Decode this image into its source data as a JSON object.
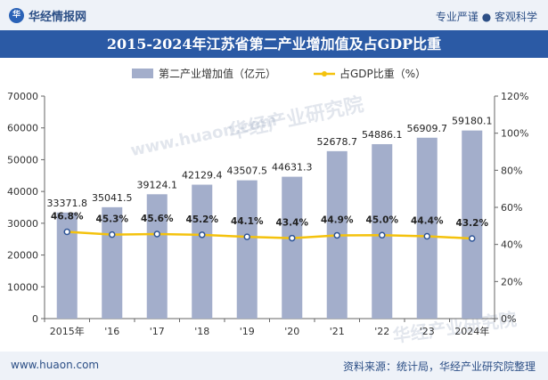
{
  "header": {
    "brand": "华经情报网",
    "logo_text": "华",
    "tagline": "专业严谨 ● 客观科学"
  },
  "title": "2015-2024年江苏省第二产业增加值及占GDP比重",
  "footer": {
    "website": "www.huaon.com",
    "source": "资料来源：统计局，华经产业研究院整理"
  },
  "watermarks": [
    "华经产业研究院",
    "www.huaon.com",
    "华经产业研究院"
  ],
  "colors": {
    "bar": "#a3aecb",
    "line": "#f4c20d",
    "title_bg": "#2b5aa5",
    "brand": "#2c4f86"
  },
  "chart_data": {
    "type": "bar",
    "categories": [
      "2015年",
      "'16",
      "'17",
      "'18",
      "'19",
      "'20",
      "'21",
      "'22",
      "'23",
      "2024年"
    ],
    "series": [
      {
        "name": "第二产业增加值（亿元）",
        "type": "bar",
        "axis": "left",
        "values": [
          33371.8,
          35041.5,
          39124.1,
          42129.4,
          43507.5,
          44631.3,
          52678.7,
          54886.1,
          56909.7,
          59180.1
        ],
        "labels": [
          "33371.8",
          "35041.5",
          "39124.1",
          "42129.4",
          "43507.5",
          "44631.3",
          "52678.7",
          "54886.1",
          "56909.7",
          "59180.1"
        ]
      },
      {
        "name": "占GDP比重（%）",
        "type": "line",
        "axis": "right",
        "values": [
          46.8,
          45.3,
          45.6,
          45.2,
          44.1,
          43.4,
          44.9,
          45.0,
          44.4,
          43.2
        ],
        "labels": [
          "46.8%",
          "45.3%",
          "45.6%",
          "45.2%",
          "44.1%",
          "43.4%",
          "44.9%",
          "45.0%",
          "44.4%",
          "43.2%"
        ]
      }
    ],
    "y_left": {
      "min": 0,
      "max": 70000,
      "ticks": [
        "0",
        "10000",
        "20000",
        "30000",
        "40000",
        "50000",
        "60000",
        "70000"
      ]
    },
    "y_right": {
      "min": 0,
      "max": 120,
      "ticks": [
        "0%",
        "20%",
        "40%",
        "60%",
        "80%",
        "100%",
        "120%"
      ]
    },
    "legend_position": "top",
    "grid": false
  }
}
